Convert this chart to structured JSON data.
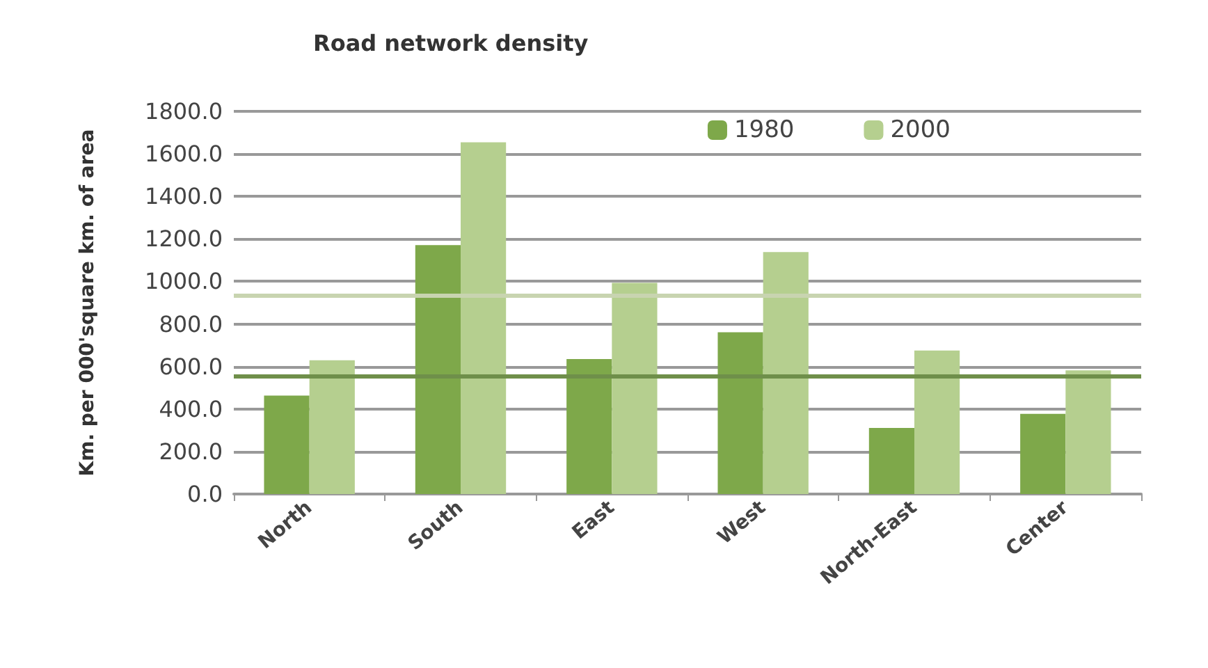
{
  "chart_data": {
    "type": "bar",
    "title": "Road network density",
    "ylabel": "Km. per 000'square km. of area",
    "categories": [
      "North",
      "South",
      "East",
      "West",
      "North-East",
      "Center"
    ],
    "series": [
      {
        "name": "1980",
        "color": "#7ea84a",
        "values": [
          463,
          1171,
          635,
          761,
          311,
          377
        ]
      },
      {
        "name": "2000",
        "color": "#b5cf8f",
        "values": [
          629,
          1654,
          993,
          1138,
          675,
          582
        ]
      }
    ],
    "ylim": [
      0,
      1800
    ],
    "yticks": [
      {
        "value": 0,
        "label": "0.0"
      },
      {
        "value": 200,
        "label": "200.0"
      },
      {
        "value": 400,
        "label": "400.0"
      },
      {
        "value": 600,
        "label": "600.0"
      },
      {
        "value": 800,
        "label": "800.0"
      },
      {
        "value": 1000,
        "label": "1000.0"
      },
      {
        "value": 1200,
        "label": "1200.0"
      },
      {
        "value": 1400,
        "label": "1400.0"
      },
      {
        "value": 1600,
        "label": "1600.0"
      },
      {
        "value": 1800,
        "label": "1800.0"
      }
    ],
    "ref_lines": [
      {
        "axis": "y",
        "value": 556,
        "color": "#6f8f4a"
      },
      {
        "axis": "y",
        "value": 933,
        "color": "#c8d4b0"
      }
    ],
    "grid": "y",
    "legend": "top right"
  }
}
